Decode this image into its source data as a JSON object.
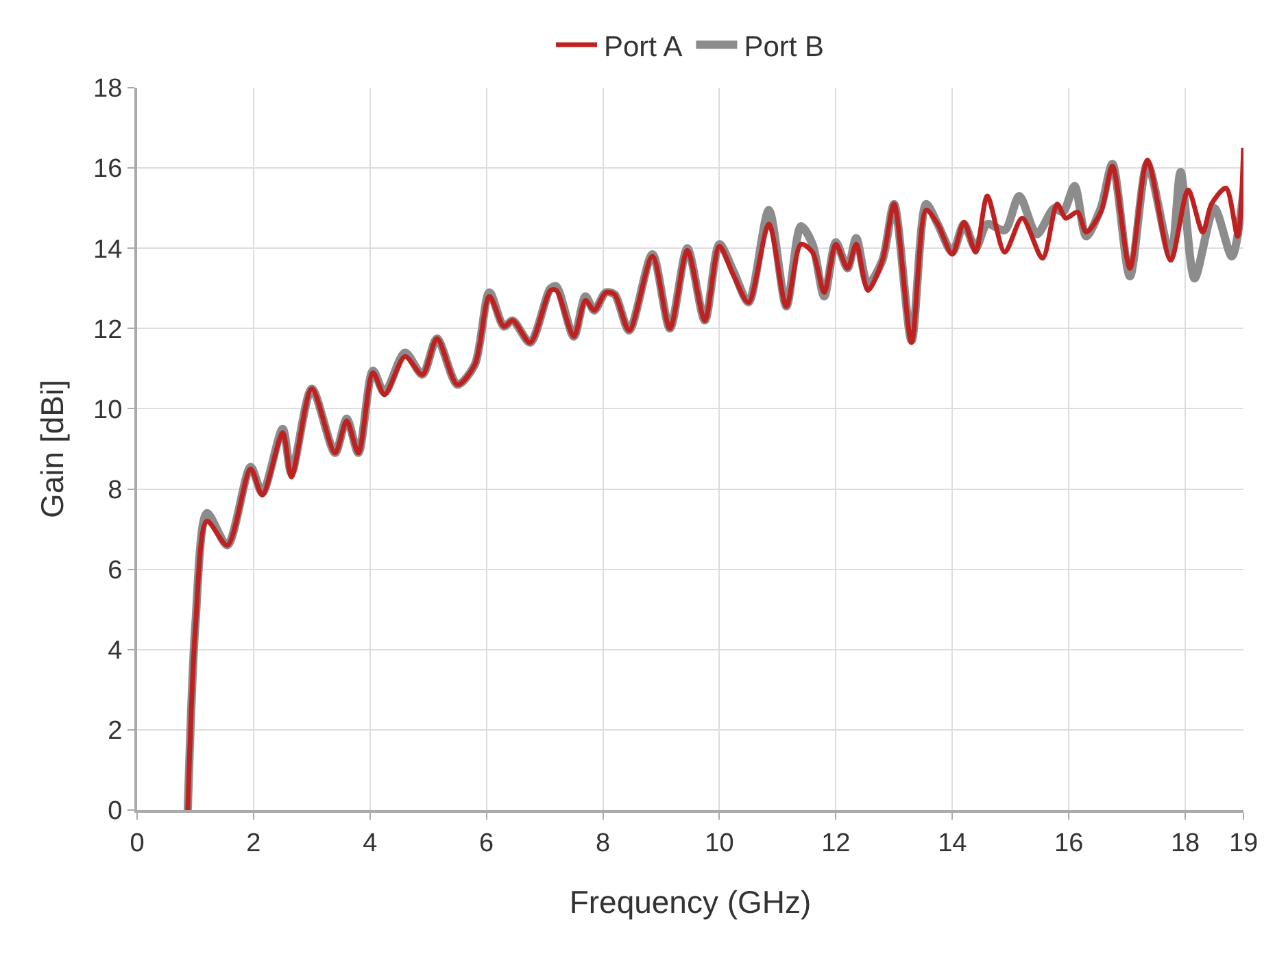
{
  "chart_data": {
    "type": "line",
    "xlabel": "Frequency (GHz)",
    "ylabel": "Gain [dBi]",
    "xlim": [
      0,
      19
    ],
    "xticks": [
      0,
      2,
      4,
      6,
      8,
      10,
      12,
      14,
      16,
      18,
      19
    ],
    "ylim": [
      0,
      18
    ],
    "yticks": [
      0,
      2,
      4,
      6,
      8,
      10,
      12,
      14,
      16,
      18
    ],
    "grid": true,
    "legend": "top",
    "line_style": "solid",
    "marker": "none",
    "series": [
      {
        "name": "Port B",
        "color": "#8c8c8c",
        "x": [
          0.87,
          1.0,
          1.2,
          1.55,
          1.95,
          2.15,
          2.5,
          2.65,
          3.0,
          3.4,
          3.6,
          3.8,
          4.05,
          4.25,
          4.6,
          4.9,
          5.15,
          5.5,
          5.8,
          6.05,
          6.3,
          6.45,
          6.75,
          7.1,
          7.2,
          7.5,
          7.7,
          7.85,
          8.05,
          8.2,
          8.45,
          8.85,
          9.15,
          9.45,
          9.75,
          10.0,
          10.25,
          10.5,
          10.85,
          11.15,
          11.4,
          11.6,
          11.8,
          12.0,
          12.2,
          12.35,
          12.55,
          12.8,
          13.0,
          13.3,
          13.55,
          13.75,
          14.0,
          14.2,
          14.4,
          14.6,
          14.9,
          15.15,
          15.45,
          15.75,
          15.9,
          16.1,
          16.3,
          16.55,
          16.75,
          17.05,
          17.35,
          17.75,
          17.92,
          18.16,
          18.5,
          18.8,
          19.0
        ],
        "values": [
          0,
          4.6,
          7.4,
          6.6,
          8.55,
          7.9,
          9.5,
          8.4,
          10.5,
          8.9,
          9.75,
          8.9,
          10.95,
          10.4,
          11.4,
          10.85,
          11.75,
          10.6,
          11.1,
          12.9,
          12.05,
          12.2,
          11.65,
          13.0,
          13.05,
          11.8,
          12.8,
          12.45,
          12.9,
          12.85,
          11.95,
          13.85,
          12.0,
          14.0,
          12.2,
          14.1,
          13.4,
          12.65,
          14.95,
          12.55,
          14.55,
          14.1,
          12.8,
          14.15,
          13.5,
          14.25,
          13.1,
          13.7,
          15.1,
          11.7,
          15.1,
          14.6,
          13.9,
          14.6,
          14.0,
          14.6,
          14.45,
          15.3,
          14.35,
          15.0,
          14.9,
          15.55,
          14.3,
          15.0,
          16.1,
          13.3,
          16.1,
          13.8,
          15.9,
          13.25,
          15.0,
          13.8,
          15.4
        ]
      },
      {
        "name": "Port A",
        "color": "#bf2121",
        "x": [
          0.87,
          1.0,
          1.2,
          1.55,
          1.95,
          2.15,
          2.5,
          2.65,
          3.0,
          3.4,
          3.6,
          3.8,
          4.05,
          4.25,
          4.6,
          4.9,
          5.15,
          5.5,
          5.8,
          6.05,
          6.3,
          6.45,
          6.75,
          7.1,
          7.2,
          7.5,
          7.7,
          7.85,
          8.05,
          8.2,
          8.45,
          8.85,
          9.15,
          9.45,
          9.75,
          10.0,
          10.25,
          10.5,
          10.85,
          11.15,
          11.4,
          11.6,
          11.8,
          12.0,
          12.2,
          12.35,
          12.55,
          12.8,
          13.0,
          13.3,
          13.55,
          13.75,
          14.0,
          14.2,
          14.4,
          14.6,
          14.9,
          15.2,
          15.55,
          15.8,
          15.95,
          16.15,
          16.3,
          16.55,
          16.75,
          17.05,
          17.35,
          17.75,
          18.05,
          18.3,
          18.45,
          18.7,
          18.9,
          19.0
        ],
        "values": [
          0,
          4.5,
          7.2,
          6.6,
          8.5,
          7.85,
          9.4,
          8.3,
          10.5,
          8.9,
          9.7,
          8.9,
          10.9,
          10.35,
          11.3,
          10.85,
          11.75,
          10.6,
          11.1,
          12.8,
          12.05,
          12.2,
          11.65,
          12.95,
          12.95,
          11.8,
          12.7,
          12.45,
          12.9,
          12.85,
          11.95,
          13.8,
          12.0,
          13.95,
          12.2,
          14.05,
          13.3,
          12.65,
          14.6,
          12.55,
          14.1,
          13.9,
          12.9,
          14.1,
          13.5,
          14.1,
          12.95,
          13.7,
          15.1,
          11.65,
          14.95,
          14.6,
          13.85,
          14.65,
          13.9,
          15.3,
          13.9,
          14.75,
          13.75,
          15.1,
          14.75,
          14.9,
          14.4,
          14.9,
          16.05,
          13.5,
          16.2,
          13.7,
          15.45,
          14.4,
          15.1,
          15.5,
          14.3,
          16.5
        ]
      }
    ]
  }
}
